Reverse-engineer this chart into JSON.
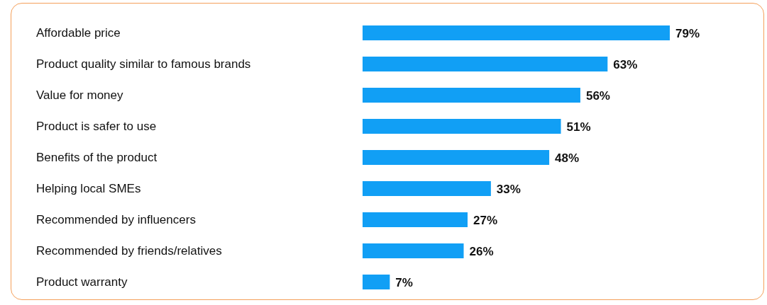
{
  "chart_data": {
    "type": "bar",
    "orientation": "horizontal",
    "categories": [
      "Affordable price",
      "Product quality similar to famous brands",
      "Value for money",
      "Product is safer to use",
      "Benefits of the product",
      "Helping local SMEs",
      "Recommended by influencers",
      "Recommended by friends/relatives",
      "Product warranty"
    ],
    "values": [
      79,
      63,
      56,
      51,
      48,
      33,
      27,
      26,
      7
    ],
    "value_labels": [
      "79%",
      "63%",
      "56%",
      "51%",
      "48%",
      "33%",
      "27%",
      "26%",
      "7%"
    ],
    "color": "#119ff5"
  }
}
